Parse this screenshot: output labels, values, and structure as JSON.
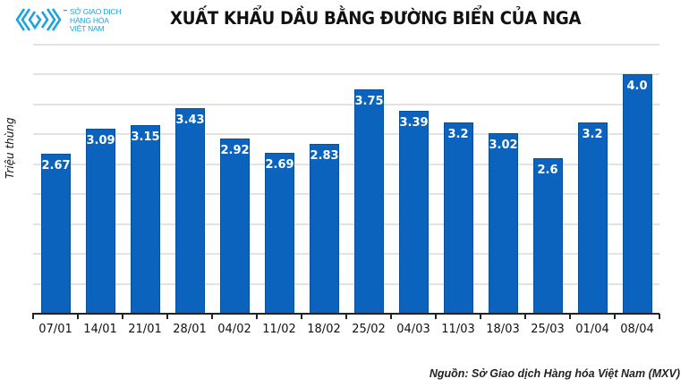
{
  "header": {
    "logo_lines": [
      "SỞ GIAO DỊCH",
      "HÀNG HÓA",
      "VIỆT NAM"
    ],
    "title": "XUẤT KHẨU DẦU BẰNG ĐƯỜNG BIỂN CỦA NGA"
  },
  "footer": {
    "source": "Nguồn: Sở Giao dịch Hàng hóa Việt Nam (MXV)"
  },
  "colors": {
    "bar": "#0b63bd",
    "logo": "#1ea3df"
  },
  "chart_data": {
    "type": "bar",
    "title": "XUẤT KHẨU DẦU BẰNG ĐƯỜNG BIỂN CỦA NGA",
    "xlabel": "",
    "ylabel": "Triệu thùng",
    "categories": [
      "07/01",
      "14/01",
      "21/01",
      "28/01",
      "04/02",
      "11/02",
      "18/02",
      "25/02",
      "04/03",
      "11/03",
      "18/03",
      "25/03",
      "01/04",
      "08/04"
    ],
    "values": [
      2.67,
      3.09,
      3.15,
      3.43,
      2.92,
      2.69,
      2.83,
      3.75,
      3.39,
      3.2,
      3.02,
      2.6,
      3.2,
      4.0
    ],
    "value_labels": [
      "2.67",
      "3.09",
      "3.15",
      "3.43",
      "2.92",
      "2.69",
      "2.83",
      "3.75",
      "3.39",
      "3.2",
      "3.02",
      "2.6",
      "3.2",
      "4.0"
    ],
    "ylim": [
      0,
      4.5
    ],
    "grid": true,
    "grid_step": 0.5,
    "y_tick_labels_shown": false,
    "legend": null,
    "source": "Nguồn: Sở Giao dịch Hàng hóa Việt Nam (MXV)"
  }
}
